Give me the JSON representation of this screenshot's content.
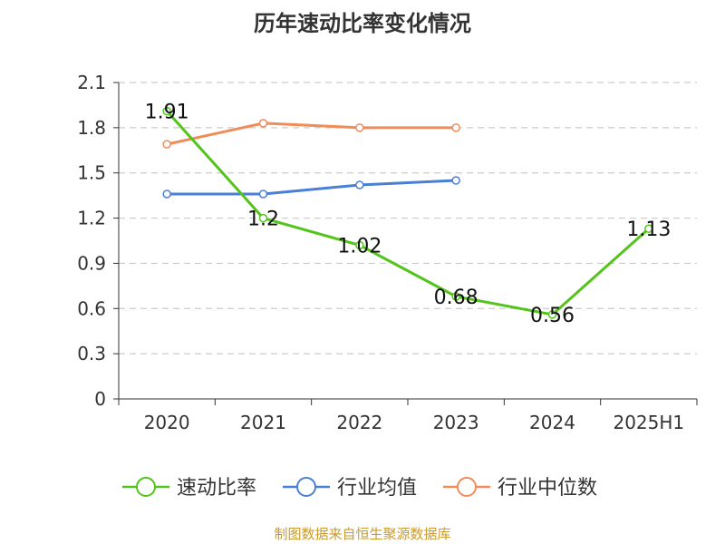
{
  "chart_data": {
    "type": "line",
    "title": "历年速动比率变化情况",
    "categories": [
      "2020",
      "2021",
      "2022",
      "2023",
      "2024",
      "2025H1"
    ],
    "ylim": [
      0,
      2.1
    ],
    "yticks": [
      "0",
      "0.3",
      "0.6",
      "0.9",
      "1.2",
      "1.5",
      "1.8",
      "2.1"
    ],
    "grid": true,
    "legend_position": "bottom",
    "series": [
      {
        "name": "速动比率",
        "color": "#52c41a",
        "values": [
          1.91,
          1.2,
          1.02,
          0.68,
          0.56,
          1.13
        ],
        "labels": [
          "1.91",
          "1.2",
          "1.02",
          "0.68",
          "0.56",
          "1.13"
        ]
      },
      {
        "name": "行业均值",
        "color": "#4a7fd8",
        "values": [
          1.36,
          1.36,
          1.42,
          1.45,
          null,
          null
        ]
      },
      {
        "name": "行业中位数",
        "color": "#f08c5a",
        "values": [
          1.69,
          1.83,
          1.8,
          1.8,
          null,
          null
        ]
      }
    ]
  },
  "source": "制图数据来自恒生聚源数据库"
}
